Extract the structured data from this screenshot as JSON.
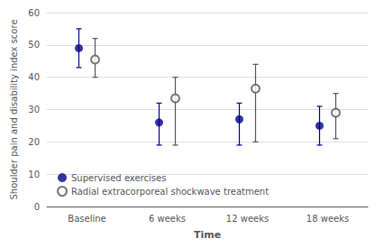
{
  "chart_data": {
    "type": "scatter",
    "xlabel": "Time",
    "ylabel": "Shoulder pain and disability index score",
    "categories": [
      "Baseline",
      "6 weeks",
      "12 weeks",
      "18 weeks"
    ],
    "series": [
      {
        "name": "Supervised exercises",
        "color": "#00008B",
        "marker": "circle",
        "values": [
          49,
          26,
          27,
          25
        ],
        "lower": [
          43,
          19,
          19,
          19
        ],
        "upper": [
          55,
          32,
          32,
          31
        ]
      },
      {
        "name": "Radial extracorporeal shockwave treatment",
        "color": "#555555",
        "marker": "emptyCircle",
        "values": [
          45.5,
          33.5,
          36.5,
          29
        ],
        "lower": [
          40,
          19,
          20,
          21
        ],
        "upper": [
          52,
          40,
          44,
          35
        ]
      }
    ],
    "ylim": [
      0,
      60
    ],
    "yticks": [
      0,
      10,
      20,
      30,
      40,
      50,
      60
    ],
    "grid": true,
    "legend": "lower left"
  }
}
